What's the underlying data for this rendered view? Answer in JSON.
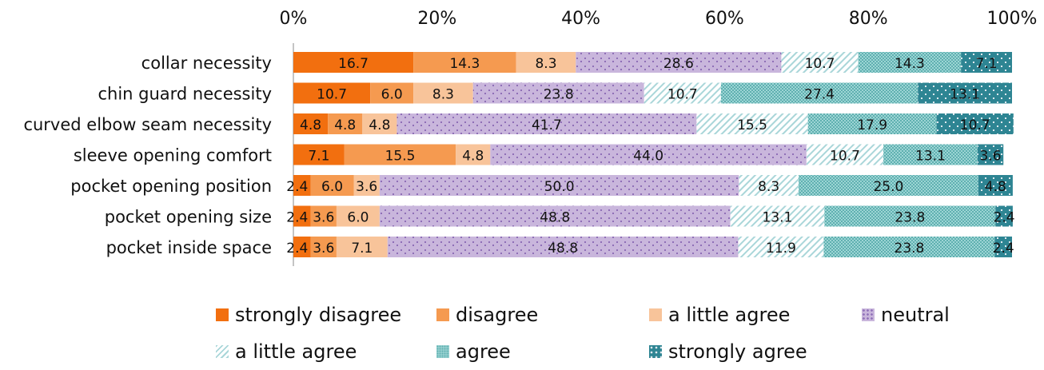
{
  "chart_data": {
    "type": "bar",
    "orientation": "horizontal",
    "stacked": "100%",
    "x_ticks": [
      "0%",
      "20%",
      "40%",
      "60%",
      "80%",
      "100%"
    ],
    "xlim": [
      0,
      100
    ],
    "categories": [
      "collar necessity",
      "chin guard necessity",
      "curved elbow seam necessity",
      "sleeve opening comfort",
      "pocket opening position",
      "pocket opening size",
      "pocket inside space"
    ],
    "series": [
      {
        "name": "strongly disagree",
        "color": "#f26f0f",
        "pattern": "solid",
        "values": [
          16.7,
          10.7,
          4.8,
          7.1,
          2.4,
          2.4,
          2.4
        ]
      },
      {
        "name": "disagree",
        "color": "#f59a50",
        "pattern": "solid",
        "values": [
          14.3,
          6.0,
          4.8,
          15.5,
          6.0,
          3.6,
          3.6
        ]
      },
      {
        "name": "a little agree",
        "color": "#f8c49a",
        "pattern": "solid",
        "values": [
          8.3,
          8.3,
          4.8,
          4.8,
          3.6,
          6.0,
          7.1
        ]
      },
      {
        "name": "neutral",
        "color": "#c9b6dc",
        "pattern": "dots",
        "pattern_color": "#8f6fb7",
        "values": [
          28.6,
          23.8,
          41.7,
          44.0,
          50.0,
          48.8,
          48.8
        ]
      },
      {
        "name": "a little agree",
        "color": "#ffffff",
        "pattern": "diagonal",
        "pattern_color": "#a9d6d9",
        "values": [
          10.7,
          10.7,
          15.5,
          10.7,
          8.3,
          13.1,
          11.9
        ]
      },
      {
        "name": "agree",
        "color": "#8ecfcf",
        "pattern": "crosshatch",
        "pattern_color": "#5fb0b0",
        "values": [
          14.3,
          27.4,
          17.9,
          13.1,
          25.0,
          23.8,
          23.8
        ]
      },
      {
        "name": "strongly agree",
        "color": "#2e8593",
        "pattern": "dots",
        "pattern_color": "#dfe9ee",
        "values": [
          7.1,
          13.1,
          10.7,
          3.6,
          4.8,
          2.4,
          2.4
        ]
      }
    ],
    "legend_position": "bottom",
    "grid": false
  }
}
